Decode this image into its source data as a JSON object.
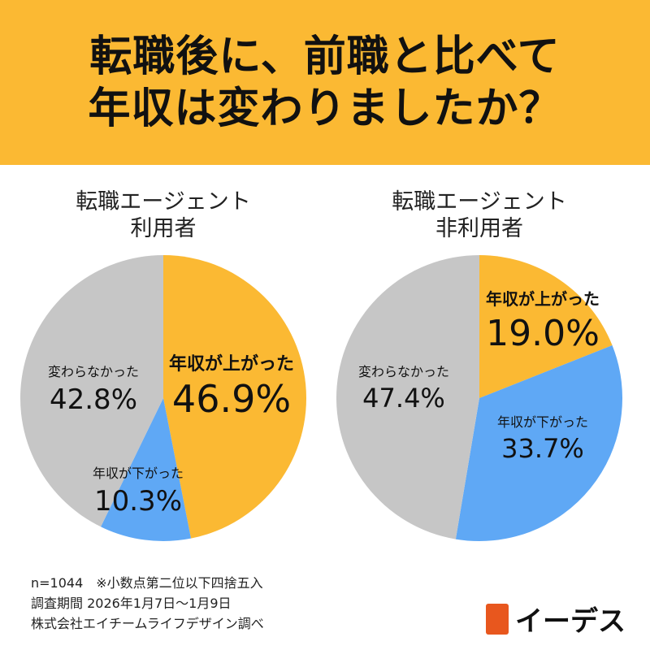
{
  "header": {
    "line1": "転職後に、前職と比べて",
    "line2": "年収は変わりましたか？"
  },
  "colors": {
    "up": "#FBB933",
    "down": "#5FA8F5",
    "same": "#C6C6C6"
  },
  "chart_data": [
    {
      "type": "pie",
      "title": "転職エージェント\n利用者",
      "title_lines": [
        "転職エージェント",
        "利用者"
      ],
      "slices": [
        {
          "label": "年収が上がった",
          "value": 46.9,
          "display": "46.9%"
        },
        {
          "label": "年収が下がった",
          "value": 10.3,
          "display": "10.3%"
        },
        {
          "label": "変わらなかった",
          "value": 42.8,
          "display": "42.8%"
        }
      ]
    },
    {
      "type": "pie",
      "title_lines": [
        "転職エージェント",
        "非利用者"
      ],
      "slices": [
        {
          "label": "年収が上がった",
          "value": 19.0,
          "display": "19.0%"
        },
        {
          "label": "年収が下がった",
          "value": 33.7,
          "display": "33.7%"
        },
        {
          "label": "変わらなかった",
          "value": 47.4,
          "display": "47.4%"
        }
      ]
    }
  ],
  "footer": {
    "line1": "n=1044　※小数点第二位以下四捨五入",
    "line2": "調査期間 2026年1月7日〜1月9日",
    "line3": "株式会社エイチームライフデザイン調べ"
  },
  "logo": {
    "text": "イーデス"
  }
}
